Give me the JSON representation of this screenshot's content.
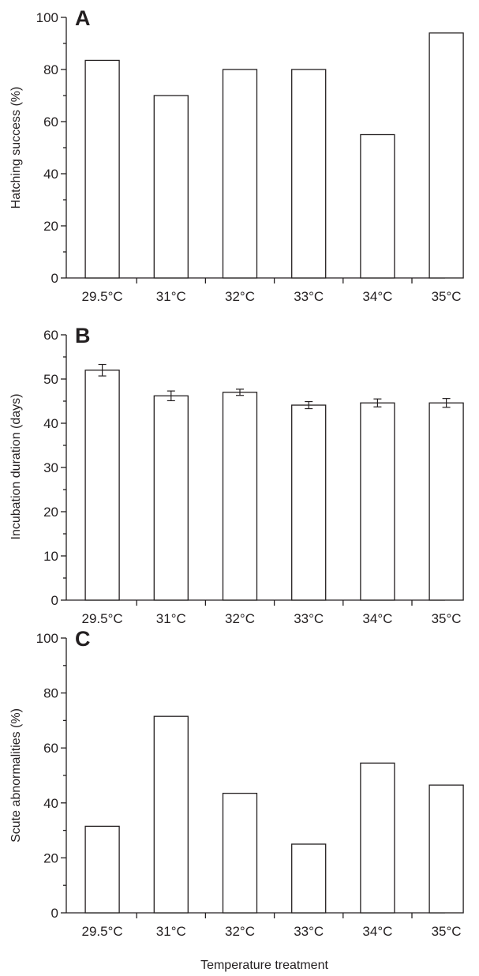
{
  "figure": {
    "xlabel": "Temperature treatment"
  },
  "chart_data": [
    {
      "type": "bar",
      "panel_label": "A",
      "title": "",
      "xlabel": "",
      "ylabel": "Hatching success (%)",
      "categories": [
        "29.5°C",
        "31°C",
        "32°C",
        "33°C",
        "34°C",
        "35°C"
      ],
      "values": [
        83.5,
        70,
        80,
        80,
        55,
        94
      ],
      "ylim": [
        0,
        100
      ],
      "yticks": [
        0,
        20,
        40,
        60,
        80,
        100
      ],
      "grid": false,
      "bar_fill": "#ffffff",
      "bar_stroke": "#231f20"
    },
    {
      "type": "bar",
      "panel_label": "B",
      "title": "",
      "xlabel": "",
      "ylabel": "Incubation duration (days)",
      "categories": [
        "29.5°C",
        "31°C",
        "32°C",
        "33°C",
        "34°C",
        "35°C"
      ],
      "values": [
        52,
        46.2,
        47,
        44.1,
        44.6,
        44.6
      ],
      "errors": [
        1.3,
        1.1,
        0.7,
        0.8,
        0.9,
        1.0
      ],
      "ylim": [
        0,
        60
      ],
      "yticks": [
        0,
        10,
        20,
        30,
        40,
        50,
        60
      ],
      "grid": false,
      "bar_fill": "#ffffff",
      "bar_stroke": "#231f20"
    },
    {
      "type": "bar",
      "panel_label": "C",
      "title": "",
      "xlabel": "",
      "ylabel": "Scute abnormalities (%)",
      "categories": [
        "29.5°C",
        "31°C",
        "32°C",
        "33°C",
        "34°C",
        "35°C"
      ],
      "values": [
        31.5,
        71.5,
        43.5,
        25,
        54.5,
        46.5
      ],
      "ylim": [
        0,
        100
      ],
      "yticks": [
        0,
        20,
        40,
        60,
        80,
        100
      ],
      "grid": false,
      "bar_fill": "#ffffff",
      "bar_stroke": "#231f20"
    }
  ]
}
